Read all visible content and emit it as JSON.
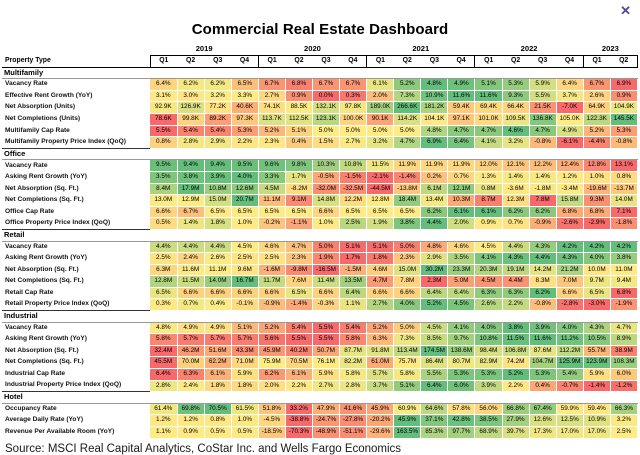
{
  "title": "Commercial Real Estate Dashboard",
  "source": "Source: MSCI Real Capital Analytics, CoStar Inc. and Wells Fargo Economics",
  "icons": {
    "close": "✕"
  },
  "heat_colors": {
    "min": "#F8696B",
    "mid": "#FFEB84",
    "max": "#63BE7B"
  },
  "columns": {
    "label": "Property Type",
    "years": [
      {
        "label": "2019",
        "quarters": [
          "Q1",
          "Q2",
          "Q3",
          "Q4"
        ]
      },
      {
        "label": "2020",
        "quarters": [
          "Q1",
          "Q2",
          "Q3",
          "Q4"
        ]
      },
      {
        "label": "2021",
        "quarters": [
          "Q1",
          "Q2",
          "Q3",
          "Q4"
        ]
      },
      {
        "label": "2022",
        "quarters": [
          "Q1",
          "Q2",
          "Q3",
          "Q4"
        ]
      },
      {
        "label": "2023",
        "quarters": [
          "Q1",
          "Q2"
        ]
      }
    ]
  },
  "sections": [
    {
      "name": "Multifamily",
      "rows": [
        {
          "label": "Vacancy Rate",
          "suffix": "%",
          "good": "low",
          "values": [
            6.4,
            6.2,
            6.2,
            6.5,
            6.7,
            6.8,
            6.7,
            6.7,
            6.1,
            5.2,
            4.8,
            4.9,
            5.1,
            5.3,
            5.9,
            6.4,
            6.7,
            6.9
          ]
        },
        {
          "label": "Effective Rent Growth (YoY)",
          "suffix": "%",
          "good": "high",
          "values": [
            3.1,
            3.0,
            3.2,
            3.3,
            2.7,
            0.9,
            0.0,
            0.3,
            2.0,
            7.3,
            10.9,
            11.6,
            11.6,
            9.3,
            5.5,
            3.7,
            2.6,
            0.9
          ]
        },
        {
          "label": "Net Absorption (Units)",
          "suffix": "K",
          "good": "high",
          "values": [
            92.9,
            126.9,
            77.2,
            40.6,
            74.1,
            88.5,
            132.1,
            97.8,
            189.0,
            266.6,
            181.2,
            59.4,
            69.4,
            66.4,
            21.5,
            -7.0,
            64.9,
            104.9
          ]
        },
        {
          "label": "Net Completions (Units)",
          "suffix": "K",
          "good": "high",
          "values": [
            78.6,
            99.8,
            89.2,
            97.3,
            113.7,
            112.5,
            123.1,
            100.0,
            90.1,
            114.2,
            104.1,
            97.1,
            101.0,
            109.5,
            136.8,
            105.0,
            122.3,
            145.5
          ]
        },
        {
          "label": "Multifamily Cap Rate",
          "suffix": "%",
          "good": "low",
          "values": [
            5.5,
            5.4,
            5.4,
            5.3,
            5.2,
            5.1,
            5.0,
            5.0,
            5.0,
            5.0,
            4.8,
            4.7,
            4.7,
            4.6,
            4.7,
            4.9,
            5.2,
            5.3
          ]
        },
        {
          "label": "Multifamily Property Price Index (QoQ)",
          "suffix": "%",
          "good": "high",
          "values": [
            0.8,
            2.8,
            2.9,
            2.2,
            2.3,
            0.4,
            1.5,
            2.7,
            3.2,
            4.7,
            6.9,
            6.4,
            4.1,
            3.2,
            -0.8,
            -6.1,
            -4.4,
            -0.8
          ]
        }
      ]
    },
    {
      "name": "Office",
      "rows": [
        {
          "label": "Vacancy Rate",
          "suffix": "%",
          "good": "low",
          "values": [
            9.5,
            9.4,
            9.4,
            9.5,
            9.6,
            9.8,
            10.3,
            10.8,
            11.5,
            11.9,
            11.9,
            11.9,
            12.0,
            12.1,
            12.2,
            12.4,
            12.8,
            13.1
          ]
        },
        {
          "label": "Asking Rent Growth (YoY)",
          "suffix": "%",
          "good": "high",
          "values": [
            3.5,
            3.8,
            3.9,
            4.0,
            3.3,
            1.7,
            -0.5,
            -1.5,
            -2.1,
            -1.4,
            0.2,
            0.7,
            1.3,
            1.4,
            1.4,
            1.2,
            1.0,
            0.8
          ]
        },
        {
          "label": "Net Absorption (Sq. Ft.)",
          "suffix": "M",
          "good": "high",
          "values": [
            8.4,
            17.9,
            10.8,
            12.6,
            4.5,
            -8.2,
            -32.0,
            -32.5,
            -44.5,
            -13.8,
            6.1,
            12.1,
            0.8,
            -3.6,
            -1.8,
            -3.4,
            -19.6,
            -13.7
          ]
        },
        {
          "label": "Net Completions (Sq. Ft.)",
          "suffix": "M",
          "good": "high",
          "values": [
            13.0,
            12.9,
            15.0,
            20.7,
            11.1,
            9.1,
            14.8,
            12.2,
            12.8,
            18.4,
            13.4,
            10.3,
            8.7,
            12.3,
            7.8,
            15.8,
            9.3,
            14.0
          ]
        },
        {
          "label": "Office Cap Rate",
          "suffix": "%",
          "good": "low",
          "values": [
            6.6,
            6.7,
            6.5,
            6.5,
            6.5,
            6.5,
            6.6,
            6.5,
            6.5,
            6.5,
            6.2,
            6.1,
            6.1,
            6.2,
            6.2,
            6.8,
            6.8,
            7.1
          ]
        },
        {
          "label": "Office Property Price Index (QoQ)",
          "suffix": "%",
          "good": "high",
          "values": [
            0.5,
            1.4,
            1.8,
            1.0,
            -0.2,
            -1.1,
            1.0,
            2.5,
            1.9,
            3.8,
            4.4,
            2.0,
            0.9,
            0.7,
            -0.9,
            -2.6,
            -2.9,
            -1.8
          ]
        }
      ]
    },
    {
      "name": "Retail",
      "rows": [
        {
          "label": "Vacancy Rate",
          "suffix": "%",
          "good": "low",
          "values": [
            4.4,
            4.4,
            4.4,
            4.5,
            4.6,
            4.7,
            5.0,
            5.1,
            5.1,
            5.0,
            4.8,
            4.6,
            4.5,
            4.4,
            4.3,
            4.2,
            4.2,
            4.2
          ]
        },
        {
          "label": "Asking Rent Growth (YoY)",
          "suffix": "%",
          "good": "high",
          "values": [
            2.5,
            2.4,
            2.6,
            2.5,
            2.5,
            2.3,
            1.9,
            1.7,
            1.8,
            2.3,
            2.9,
            3.5,
            4.1,
            4.3,
            4.4,
            4.3,
            4.0,
            3.8
          ]
        },
        {
          "label": "Net Absorption (Sq. Ft.)",
          "suffix": "M",
          "good": "high",
          "values": [
            6.3,
            11.6,
            11.1,
            9.6,
            -1.6,
            -9.8,
            -16.5,
            -1.5,
            4.6,
            15.0,
            30.2,
            23.3,
            20.3,
            19.1,
            14.2,
            21.2,
            10.0,
            11.0
          ]
        },
        {
          "label": "Net Completions (Sq. Ft.)",
          "suffix": "M",
          "good": "high",
          "values": [
            12.8,
            11.5,
            14.0,
            16.7,
            11.7,
            7.6,
            11.4,
            13.5,
            4.7,
            7.8,
            2.3,
            5.0,
            4.5,
            4.4,
            8.3,
            7.0,
            9.7,
            9.4
          ]
        },
        {
          "label": "Retail Cap Rate",
          "suffix": "%",
          "good": "low",
          "values": [
            6.5,
            6.6,
            6.6,
            6.6,
            6.6,
            6.5,
            6.6,
            6.4,
            6.6,
            6.6,
            6.4,
            6.4,
            6.3,
            6.3,
            6.2,
            6.6,
            6.5,
            6.8
          ]
        },
        {
          "label": "Retail Property Price Index (QoQ)",
          "suffix": "%",
          "good": "high",
          "values": [
            0.3,
            0.7,
            0.4,
            -0.1,
            -0.9,
            -1.4,
            -0.3,
            1.1,
            2.7,
            4.0,
            5.2,
            4.5,
            2.6,
            2.2,
            -0.8,
            -2.8,
            -3.0,
            -1.9
          ]
        }
      ]
    },
    {
      "name": "Industrial",
      "rows": [
        {
          "label": "Vacancy Rate",
          "suffix": "%",
          "good": "low",
          "values": [
            4.8,
            4.9,
            4.9,
            5.1,
            5.2,
            5.4,
            5.5,
            5.4,
            5.2,
            5.0,
            4.5,
            4.1,
            4.0,
            3.8,
            3.9,
            4.0,
            4.3,
            4.7
          ]
        },
        {
          "label": "Asking Rent Growth (YoY)",
          "suffix": "%",
          "good": "high",
          "values": [
            5.8,
            5.7,
            5.7,
            5.7,
            5.6,
            5.5,
            5.5,
            5.8,
            6.3,
            7.3,
            8.5,
            9.7,
            10.8,
            11.5,
            11.6,
            11.2,
            10.5,
            8.9
          ]
        },
        {
          "label": "Net Absorption (Sq. Ft.)",
          "suffix": "M",
          "good": "high",
          "values": [
            32.4,
            46.2,
            51.6,
            43.3,
            45.9,
            40.2,
            50.7,
            87.7,
            91.8,
            113.4,
            174.5,
            138.6,
            98.4,
            106.8,
            87.6,
            112.2,
            55.7,
            38.9
          ]
        },
        {
          "label": "Net Completions (Sq. Ft.)",
          "suffix": "M",
          "good": "high",
          "values": [
            45.5,
            70.0,
            62.2,
            71.0,
            75.9,
            70.5,
            76.1,
            82.2,
            61.0,
            75.7,
            86.4,
            80.7,
            82.9,
            74.2,
            104.7,
            125.9,
            123.9,
            108.3
          ]
        },
        {
          "label": "Industrial Cap Rate",
          "suffix": "%",
          "good": "low",
          "values": [
            6.4,
            6.3,
            6.1,
            5.9,
            6.2,
            6.1,
            5.9,
            5.8,
            5.7,
            5.8,
            5.5,
            5.3,
            5.3,
            5.2,
            5.3,
            5.4,
            5.9,
            6.0
          ]
        },
        {
          "label": "Industrial Property Price Index (QoQ)",
          "suffix": "%",
          "good": "high",
          "values": [
            2.8,
            2.4,
            1.8,
            1.8,
            2.0,
            2.2,
            2.7,
            2.8,
            3.7,
            5.1,
            6.4,
            6.0,
            3.9,
            2.2,
            0.4,
            -0.7,
            -1.4,
            -1.2
          ]
        }
      ]
    },
    {
      "name": "Hotel",
      "rows": [
        {
          "label": "Occupancy Rate",
          "suffix": "%",
          "good": "high",
          "values": [
            61.4,
            69.8,
            70.5,
            61.5,
            51.8,
            33.2,
            47.9,
            41.6,
            45.9,
            60.9,
            64.6,
            57.8,
            56.0,
            66.8,
            67.4,
            59.9,
            59.4,
            66.3
          ]
        },
        {
          "label": "Average Daily Rate (YoY)",
          "suffix": "%",
          "good": "high",
          "values": [
            1.2,
            1.2,
            0.8,
            1.0,
            -4.5,
            -38.8,
            -24.7,
            -27.8,
            -20.2,
            45.9,
            37.1,
            42.8,
            38.5,
            27.9,
            12.6,
            12.5,
            10.9,
            3.2
          ]
        },
        {
          "label": "Revenue Per Available Room (YoY)",
          "suffix": "%",
          "good": "high",
          "values": [
            1.1,
            0.9,
            0.5,
            0.5,
            -18.5,
            -70.3,
            -48.9,
            -51.1,
            -29.6,
            163.5,
            85.3,
            97.7,
            68.9,
            39.7,
            17.3,
            17.0,
            17.0,
            2.5
          ]
        }
      ]
    }
  ]
}
